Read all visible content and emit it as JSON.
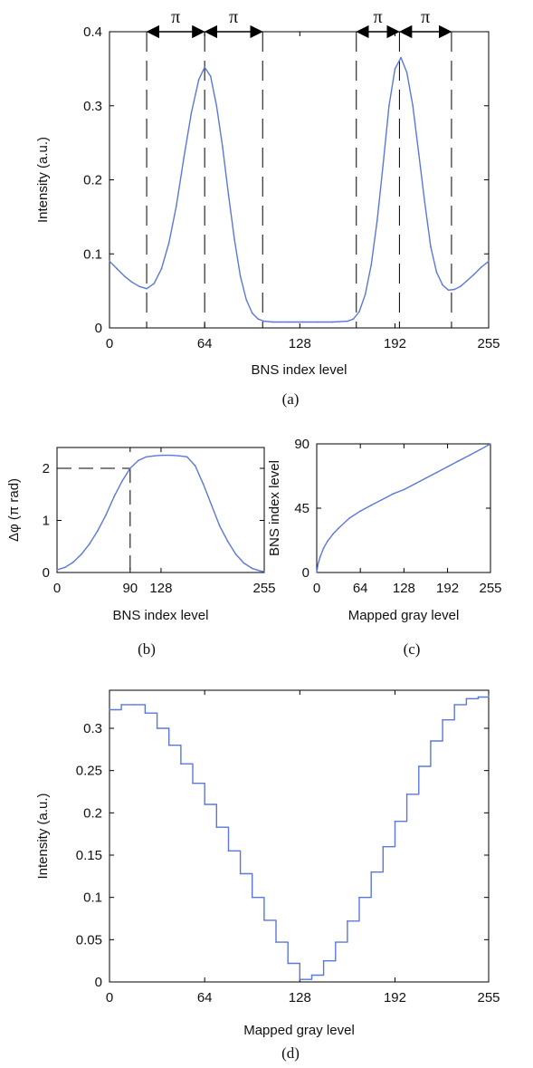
{
  "colors": {
    "line": "#5b78d8",
    "axes": "#000000",
    "dashed": "#000000"
  },
  "chart_data": [
    {
      "id": "a",
      "type": "line",
      "caption": "(a)",
      "xlabel": "BNS index level",
      "ylabel": "Intensity (a.u.)",
      "xlim": [
        0,
        255
      ],
      "ylim": [
        0,
        0.4
      ],
      "xticks": [
        0,
        64,
        128,
        192,
        255
      ],
      "yticks": [
        0,
        0.1,
        0.2,
        0.3,
        0.4
      ],
      "ytick_labels": [
        "0",
        "0.1",
        "0.2",
        "0.3",
        "0.4"
      ],
      "dashed_verticals": [
        25,
        64,
        103,
        166,
        195,
        230
      ],
      "annotations": [
        "π",
        "π",
        "π",
        "π"
      ],
      "series": [
        {
          "x": [
            0,
            5,
            10,
            15,
            20,
            25,
            30,
            35,
            40,
            45,
            50,
            55,
            60,
            64,
            68,
            72,
            76,
            80,
            84,
            88,
            92,
            96,
            100,
            104,
            110,
            120,
            130,
            140,
            150,
            160,
            164,
            168,
            172,
            176,
            180,
            184,
            188,
            192,
            196,
            200,
            204,
            208,
            212,
            216,
            220,
            224,
            228,
            232,
            236,
            240,
            245,
            250,
            255
          ],
          "y": [
            0.09,
            0.08,
            0.07,
            0.062,
            0.056,
            0.053,
            0.06,
            0.08,
            0.115,
            0.165,
            0.23,
            0.29,
            0.335,
            0.352,
            0.34,
            0.3,
            0.245,
            0.18,
            0.12,
            0.07,
            0.038,
            0.02,
            0.012,
            0.009,
            0.008,
            0.008,
            0.008,
            0.008,
            0.008,
            0.009,
            0.012,
            0.022,
            0.045,
            0.085,
            0.145,
            0.22,
            0.3,
            0.35,
            0.365,
            0.345,
            0.3,
            0.235,
            0.17,
            0.11,
            0.075,
            0.058,
            0.051,
            0.052,
            0.056,
            0.063,
            0.072,
            0.082,
            0.09
          ]
        }
      ]
    },
    {
      "id": "b",
      "type": "line",
      "caption": "(b)",
      "xlabel": "BNS index level",
      "ylabel": "Δφ (π rad)",
      "xlim": [
        0,
        255
      ],
      "ylim": [
        0,
        2.4
      ],
      "xticks": [
        0,
        90,
        128,
        255
      ],
      "yticks": [
        0,
        1,
        2
      ],
      "ytick_labels": [
        "0",
        "1",
        "2"
      ],
      "dashed_ref": {
        "x": 90,
        "y": 2
      },
      "series": [
        {
          "x": [
            0,
            10,
            20,
            30,
            40,
            50,
            60,
            70,
            80,
            90,
            100,
            110,
            120,
            130,
            140,
            150,
            160,
            170,
            180,
            190,
            200,
            210,
            220,
            230,
            240,
            250,
            255
          ],
          "y": [
            0.05,
            0.1,
            0.2,
            0.35,
            0.55,
            0.8,
            1.1,
            1.45,
            1.75,
            2.0,
            2.15,
            2.22,
            2.24,
            2.25,
            2.25,
            2.24,
            2.22,
            2.05,
            1.7,
            1.3,
            0.9,
            0.6,
            0.35,
            0.18,
            0.08,
            0.03,
            0.02
          ]
        }
      ]
    },
    {
      "id": "c",
      "type": "line",
      "caption": "(c)",
      "xlabel": "Mapped gray level",
      "ylabel": "BNS index level",
      "xlim": [
        0,
        255
      ],
      "ylim": [
        0,
        90
      ],
      "xticks": [
        0,
        64,
        128,
        192,
        255
      ],
      "yticks": [
        0,
        45,
        90
      ],
      "ytick_labels": [
        "0",
        "45",
        "90"
      ],
      "series": [
        {
          "x": [
            0,
            2,
            5,
            10,
            16,
            24,
            32,
            48,
            64,
            80,
            96,
            112,
            128,
            144,
            160,
            176,
            192,
            208,
            224,
            240,
            255
          ],
          "y": [
            0,
            6,
            11,
            17,
            22,
            27,
            31,
            38,
            43,
            47,
            51,
            55,
            58,
            62,
            66,
            70,
            74,
            78,
            82,
            86,
            90
          ]
        }
      ]
    },
    {
      "id": "d",
      "type": "line",
      "caption": "(d)",
      "xlabel": "Mapped gray level",
      "ylabel": "Intensity (a.u.)",
      "xlim": [
        0,
        255
      ],
      "ylim": [
        0,
        0.345
      ],
      "xticks": [
        0,
        64,
        128,
        192,
        255
      ],
      "yticks": [
        0,
        0.05,
        0.1,
        0.15,
        0.2,
        0.25,
        0.3
      ],
      "ytick_labels": [
        "0",
        "0.05",
        "0.1",
        "0.15",
        "0.2",
        "0.25",
        "0.3"
      ],
      "series": [
        {
          "step": true,
          "x": [
            0,
            8,
            16,
            24,
            32,
            40,
            48,
            56,
            64,
            72,
            80,
            88,
            96,
            104,
            112,
            120,
            128,
            136,
            144,
            152,
            160,
            168,
            176,
            184,
            192,
            200,
            208,
            216,
            224,
            232,
            240,
            248,
            255
          ],
          "y": [
            0.322,
            0.328,
            0.328,
            0.318,
            0.3,
            0.28,
            0.258,
            0.235,
            0.21,
            0.183,
            0.155,
            0.128,
            0.1,
            0.073,
            0.047,
            0.022,
            0.003,
            0.008,
            0.025,
            0.047,
            0.072,
            0.1,
            0.13,
            0.16,
            0.19,
            0.222,
            0.255,
            0.285,
            0.31,
            0.328,
            0.335,
            0.337,
            0.338
          ]
        }
      ]
    }
  ]
}
